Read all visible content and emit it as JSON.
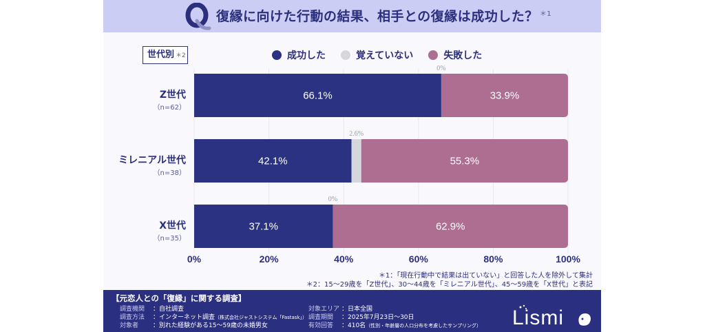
{
  "header": {
    "q_mark": "Q",
    "title": "復縁に向けた行動の結果、相手との復縁は成功した？",
    "title_note": "＊1"
  },
  "segment_box": {
    "label": "世代別",
    "note": "＊2"
  },
  "colors": {
    "success": "#2b3282",
    "unknown": "#d6d7dc",
    "failure": "#ad6e91",
    "primary": "#2b2f7c",
    "header_bg": "#cbcdf5",
    "footer_bg": "#2b2f80"
  },
  "chart_data": {
    "type": "bar",
    "orientation": "horizontal",
    "stacked": true,
    "title": "復縁に向けた行動の結果、相手との復縁は成功した？",
    "xlabel": "",
    "ylabel": "",
    "xlim": [
      0,
      100
    ],
    "x_ticks": [
      "0%",
      "20%",
      "40%",
      "60%",
      "80%",
      "100%"
    ],
    "x_tick_values": [
      0,
      20,
      40,
      60,
      80,
      100
    ],
    "grid": true,
    "legend_position": "top",
    "categories": [
      {
        "name": "Z世代",
        "n": "（n=62）"
      },
      {
        "name": "ミレニアル世代",
        "n": "（n=38）"
      },
      {
        "name": "X世代",
        "n": "（n=35）"
      }
    ],
    "series": [
      {
        "name": "成功した",
        "values": [
          66.1,
          42.1,
          37.1
        ],
        "labels": [
          "66.1%",
          "42.1%",
          "37.1%"
        ]
      },
      {
        "name": "覚えていない",
        "values": [
          0,
          2.6,
          0
        ],
        "labels": [
          "0%",
          "2.6%",
          "0%"
        ]
      },
      {
        "name": "失敗した",
        "values": [
          33.9,
          55.3,
          62.9
        ],
        "labels": [
          "33.9%",
          "55.3%",
          "62.9%"
        ]
      }
    ]
  },
  "footnotes": [
    "＊1：「現在行動中で結果は出ていない」と回答した人を除外して集計",
    "＊2：15～29歳を「Z世代」、30～44歳を「ミレニアル世代」、45～59歳を「X世代」と表記"
  ],
  "footer": {
    "title": "【元恋人との「復縁」に関する調査】",
    "left": [
      {
        "key": "調査機関",
        "value": "：自社調査",
        "small": ""
      },
      {
        "key": "調査方法",
        "value": "：インターネット調査",
        "small": "（株式会社ジャストシステム「Fastask」）"
      },
      {
        "key": "対象者",
        "value": "：別れた経験がある15～59歳の未婚男女",
        "small": ""
      }
    ],
    "right": [
      {
        "key": "対象エリア",
        "value": "：日本全国",
        "small": ""
      },
      {
        "key": "調査期間",
        "value": "：2025年7月23日～30日",
        "small": ""
      },
      {
        "key": "有効回答",
        "value": "：410名",
        "small": "（性別・年齢層の人口分布を考慮したサンプリング）"
      }
    ],
    "logo_text": "Lismi"
  }
}
